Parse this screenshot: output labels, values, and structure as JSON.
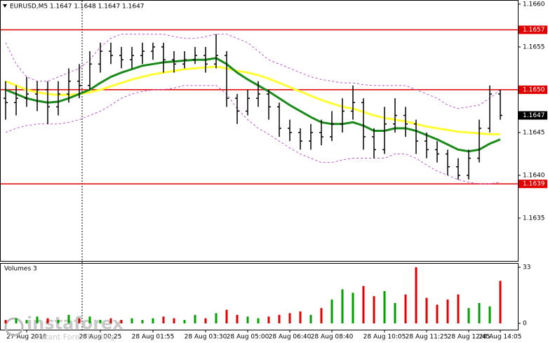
{
  "chart_data": {
    "type": "candlestick",
    "title": "EURUSD,M5  1.1647 1.1648 1.1647 1.1647",
    "volume_title": "Volumes 3",
    "categories": [
      null,
      null,
      "27 Aug 2018",
      null,
      null,
      null,
      null,
      null,
      null,
      "28 Aug 00:25",
      null,
      null,
      null,
      null,
      "28 Aug 01:55",
      null,
      null,
      null,
      null,
      "28 Aug 03:30",
      null,
      null,
      null,
      "28 Aug 05:00",
      null,
      null,
      null,
      "28 Aug 06:40",
      null,
      null,
      null,
      "28 Aug 08:40",
      null,
      null,
      null,
      null,
      "28 Aug 10:05",
      null,
      null,
      null,
      "28 Aug 11:25",
      null,
      null,
      null,
      "28 Aug 12:45",
      null,
      null,
      "28 Aug 14:05"
    ],
    "open": [
      1.1649,
      1.16485,
      1.1649,
      1.16495,
      1.165,
      1.1648,
      1.16495,
      1.1651,
      1.16505,
      1.1653,
      1.16545,
      1.1654,
      1.16535,
      1.1654,
      1.16545,
      1.1655,
      1.16535,
      1.1653,
      1.16535,
      1.1654,
      1.1653,
      1.1654,
      1.1649,
      1.16475,
      1.1649,
      1.16495,
      1.1648,
      1.16455,
      1.1645,
      1.1644,
      1.1645,
      1.16445,
      1.1646,
      1.16475,
      1.16485,
      1.16445,
      1.1643,
      1.1646,
      1.1647,
      1.1646,
      1.1644,
      1.1643,
      1.16425,
      1.1641,
      1.164,
      1.1642,
      1.16455,
      1.16495
    ],
    "high": [
      1.1651,
      1.16505,
      1.16515,
      1.1651,
      1.1651,
      1.1651,
      1.16525,
      1.1653,
      1.16545,
      1.16555,
      1.16555,
      1.1655,
      1.1655,
      1.16555,
      1.16555,
      1.16555,
      1.16545,
      1.16545,
      1.1655,
      1.1655,
      1.16565,
      1.16545,
      1.16495,
      1.165,
      1.1651,
      1.165,
      1.16485,
      1.16465,
      1.16455,
      1.1646,
      1.16465,
      1.16475,
      1.1649,
      1.16505,
      1.1649,
      1.16455,
      1.1648,
      1.1649,
      1.1648,
      1.16465,
      1.1645,
      1.1644,
      1.1643,
      1.1642,
      1.1643,
      1.16465,
      1.16505,
      1.165
    ],
    "low": [
      1.16465,
      1.1647,
      1.1648,
      1.16475,
      1.1646,
      1.1647,
      1.16485,
      1.1649,
      1.165,
      1.1652,
      1.1653,
      1.16525,
      1.16525,
      1.1653,
      1.16535,
      1.1652,
      1.1652,
      1.16525,
      1.1653,
      1.1652,
      1.16525,
      1.1648,
      1.1646,
      1.1647,
      1.1648,
      1.16465,
      1.16445,
      1.1644,
      1.1643,
      1.1643,
      1.16435,
      1.1644,
      1.1645,
      1.16465,
      1.1643,
      1.1642,
      1.16425,
      1.1645,
      1.16445,
      1.16425,
      1.1642,
      1.16415,
      1.164,
      1.16395,
      1.16395,
      1.16415,
      1.1645,
      1.16465
    ],
    "close": [
      1.16485,
      1.1649,
      1.16495,
      1.165,
      1.1648,
      1.16495,
      1.1651,
      1.16505,
      1.1653,
      1.16545,
      1.1654,
      1.16535,
      1.1654,
      1.16545,
      1.1655,
      1.16535,
      1.1653,
      1.16535,
      1.1654,
      1.1653,
      1.1654,
      1.1649,
      1.16475,
      1.1649,
      1.16495,
      1.1648,
      1.16455,
      1.1645,
      1.1644,
      1.1645,
      1.16445,
      1.1646,
      1.16475,
      1.16485,
      1.16445,
      1.1643,
      1.1646,
      1.1647,
      1.1646,
      1.1644,
      1.1643,
      1.16425,
      1.1641,
      1.164,
      1.1642,
      1.16455,
      1.16495,
      1.1647
    ],
    "volume": [
      2,
      3,
      2,
      4,
      3,
      2,
      5,
      3,
      4,
      2,
      3,
      2,
      3,
      2,
      3,
      4,
      3,
      2,
      5,
      3,
      6,
      8,
      5,
      4,
      3,
      4,
      5,
      6,
      7,
      5,
      9,
      14,
      20,
      18,
      22,
      16,
      19,
      12,
      17,
      33,
      15,
      11,
      14,
      17,
      9,
      12,
      10,
      25
    ],
    "bar_color": "#000000",
    "up_color": "#00a000",
    "down_color": "#e00000",
    "lines": [
      {
        "color": "#ffff33",
        "dash": false,
        "values": [
          1.1651,
          1.16505,
          1.165,
          1.16497,
          1.16495,
          1.16494,
          1.16494,
          1.16495,
          1.16497,
          1.165,
          1.16504,
          1.16508,
          1.16512,
          1.16515,
          1.16518,
          1.1652,
          1.16522,
          1.16524,
          1.16525,
          1.16526,
          1.16527,
          1.16525,
          1.16522,
          1.1652,
          1.16517,
          1.16513,
          1.16508,
          1.16503,
          1.16498,
          1.16493,
          1.16488,
          1.16484,
          1.1648,
          1.16478,
          1.16474,
          1.1647,
          1.16467,
          1.16465,
          1.16463,
          1.1646,
          1.16457,
          1.16455,
          1.16453,
          1.16451,
          1.1645,
          1.16449,
          1.16448,
          1.16448
        ]
      },
      {
        "color": "#1a8a1a",
        "dash": false,
        "values": [
          1.165,
          1.16495,
          1.1649,
          1.16487,
          1.16485,
          1.16486,
          1.1649,
          1.16495,
          1.165,
          1.16508,
          1.16515,
          1.1652,
          1.16524,
          1.16528,
          1.1653,
          1.16532,
          1.16533,
          1.16534,
          1.16535,
          1.16535,
          1.16537,
          1.1653,
          1.1652,
          1.16512,
          1.16505,
          1.16498,
          1.1649,
          1.16482,
          1.16475,
          1.16468,
          1.16462,
          1.1646,
          1.1646,
          1.16462,
          1.16458,
          1.16452,
          1.16452,
          1.16455,
          1.16455,
          1.16452,
          1.16447,
          1.16442,
          1.16436,
          1.1643,
          1.16428,
          1.1643,
          1.16437,
          1.16442
        ]
      },
      {
        "color": "#c050d0",
        "dash": true,
        "values": [
          1.16555,
          1.1653,
          1.16515,
          1.1651,
          1.1651,
          1.16515,
          1.1652,
          1.16525,
          1.16535,
          1.1655,
          1.1656,
          1.16565,
          1.16565,
          1.16565,
          1.16565,
          1.16565,
          1.16562,
          1.1656,
          1.1656,
          1.16562,
          1.16565,
          1.16565,
          1.1656,
          1.16555,
          1.16545,
          1.16535,
          1.1653,
          1.16525,
          1.1652,
          1.16515,
          1.16512,
          1.1651,
          1.16508,
          1.16508,
          1.16506,
          1.16505,
          1.16505,
          1.16505,
          1.16505,
          1.165,
          1.16495,
          1.1649,
          1.16482,
          1.16478,
          1.1648,
          1.16482,
          1.1649,
          1.165
        ]
      },
      {
        "color": "#c050d0",
        "dash": true,
        "values": [
          1.1645,
          1.16455,
          1.16458,
          1.1646,
          1.1646,
          1.1646,
          1.16462,
          1.16465,
          1.1647,
          1.16475,
          1.16482,
          1.1649,
          1.16495,
          1.16498,
          1.165,
          1.165,
          1.16502,
          1.16505,
          1.16505,
          1.16505,
          1.16505,
          1.16495,
          1.16478,
          1.16465,
          1.16455,
          1.16448,
          1.1644,
          1.16432,
          1.16425,
          1.1642,
          1.16415,
          1.16415,
          1.16418,
          1.1642,
          1.1642,
          1.1642,
          1.1642,
          1.16425,
          1.16425,
          1.1642,
          1.16412,
          1.16405,
          1.164,
          1.16395,
          1.16392,
          1.1639,
          1.1639,
          1.16392
        ]
      }
    ],
    "levels": [
      1.1657,
      {
        "value": 1.165,
        "label": "1.1650"
      },
      1.1639
    ],
    "level_color": "#e00000",
    "current_price": 1.1647,
    "ylim": [
      1.163,
      1.16604
    ],
    "yticks": [
      1.1635,
      {
        "value": 1.164,
        "label": "1.1640"
      },
      1.1645,
      {
        "value": 1.165,
        "label": "1.1650"
      },
      1.1655,
      {
        "value": 1.166,
        "label": "1.1660"
      }
    ],
    "volume_ylim": [
      0,
      33
    ],
    "volume_yticks": [
      0,
      33
    ],
    "watermark": {
      "brand": "instaforex",
      "tagline": "Instant Forex Trading"
    }
  }
}
